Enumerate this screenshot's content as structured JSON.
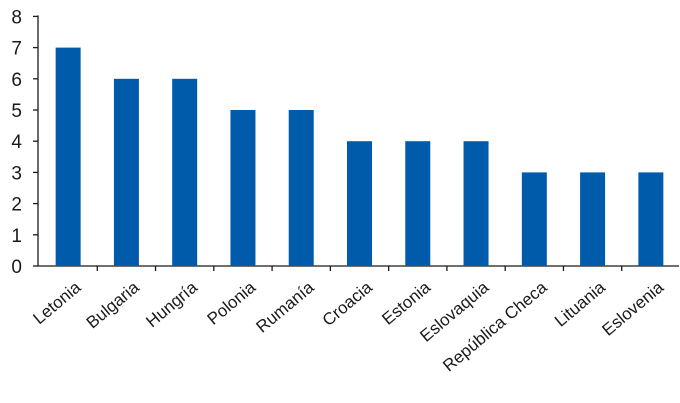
{
  "colors": {
    "bar": "#005bab",
    "axis": "#1a1a1a",
    "text": "#1a1a1a"
  },
  "chart_data": {
    "type": "bar",
    "categories": [
      "Letonia",
      "Bulgaria",
      "Hungría",
      "Polonia",
      "Rumanía",
      "Croacia",
      "Estonia",
      "Eslovaquia",
      "República Checa",
      "Lituania",
      "Eslovenia"
    ],
    "values": [
      7,
      6,
      6,
      5,
      5,
      4,
      4,
      4,
      3,
      3,
      3
    ],
    "ylim": [
      0,
      8
    ],
    "yticks": [
      0,
      1,
      2,
      3,
      4,
      5,
      6,
      7,
      8
    ],
    "grid": false,
    "legend": "none"
  }
}
